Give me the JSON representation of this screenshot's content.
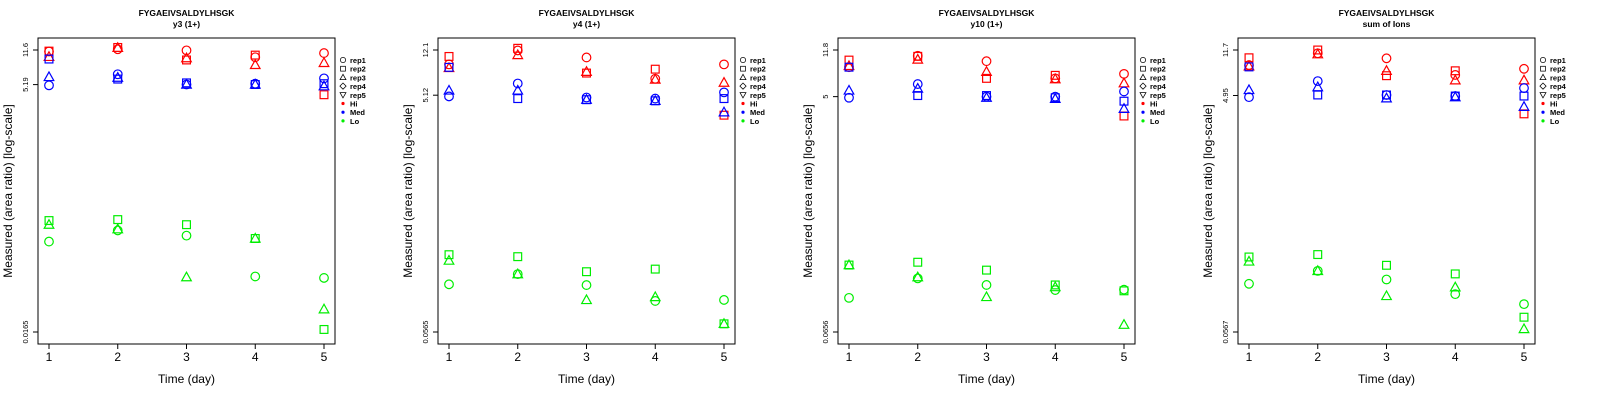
{
  "figure": {
    "x_label": "Time (day)",
    "y_label": "Measured (area ratio) [log-scale]"
  },
  "legend": {
    "shapes": [
      {
        "label": "rep1",
        "shape": "circle"
      },
      {
        "label": "rep2",
        "shape": "square"
      },
      {
        "label": "rep3",
        "shape": "triangle-up"
      },
      {
        "label": "rep4",
        "shape": "diamond"
      },
      {
        "label": "rep5",
        "shape": "triangle-down"
      }
    ],
    "groups": [
      {
        "label": "Hi",
        "color": "#ff0000"
      },
      {
        "label": "Med",
        "color": "#0000ff"
      },
      {
        "label": "Lo",
        "color": "#00ee00"
      }
    ]
  },
  "chart_data": [
    {
      "type": "scatter",
      "title": "FYGAEIVSALDYLHSGK",
      "subtitle": "y3 (1+)",
      "y_scale": "log",
      "x": [
        1,
        2,
        3,
        4,
        5
      ],
      "ylim": [
        0.0165,
        11.6
      ],
      "y_ticks": [
        "0.0165",
        "5.19",
        "11.6"
      ],
      "series": [
        {
          "group": "Hi",
          "rep": "rep1",
          "values": [
            11.2,
            11.8,
            11.5,
            9.8,
            10.8
          ]
        },
        {
          "group": "Hi",
          "rep": "rep2",
          "values": [
            11.3,
            12.3,
            9.2,
            10.3,
            4.1
          ]
        },
        {
          "group": "Hi",
          "rep": "rep3",
          "values": [
            9.9,
            12.2,
            9.6,
            8.2,
            8.6
          ]
        },
        {
          "group": "Med",
          "rep": "rep1",
          "values": [
            5.1,
            6.6,
            5.2,
            5.3,
            6.0
          ]
        },
        {
          "group": "Med",
          "rep": "rep2",
          "values": [
            9.4,
            5.9,
            5.4,
            5.2,
            5.3
          ]
        },
        {
          "group": "Med",
          "rep": "rep3",
          "values": [
            6.2,
            6.1,
            5.2,
            5.2,
            5.0
          ]
        },
        {
          "group": "Lo",
          "rep": "rep1",
          "values": [
            0.135,
            0.175,
            0.155,
            0.06,
            0.058
          ]
        },
        {
          "group": "Lo",
          "rep": "rep2",
          "values": [
            0.22,
            0.225,
            0.2,
            0.145,
            0.0175
          ]
        },
        {
          "group": "Lo",
          "rep": "rep3",
          "values": [
            0.2,
            0.18,
            0.059,
            0.145,
            0.028
          ]
        }
      ]
    },
    {
      "type": "scatter",
      "title": "FYGAEIVSALDYLHSGK",
      "subtitle": "y4 (1+)",
      "y_scale": "log",
      "x": [
        1,
        2,
        3,
        4,
        5
      ],
      "ylim": [
        0.0565,
        12.1
      ],
      "y_ticks": [
        "0.0565",
        "5.12",
        "12.1"
      ],
      "series": [
        {
          "group": "Hi",
          "rep": "rep1",
          "values": [
            9.2,
            12.0,
            10.5,
            7.0,
            9.2
          ]
        },
        {
          "group": "Hi",
          "rep": "rep2",
          "values": [
            10.7,
            12.5,
            7.8,
            8.4,
            3.5
          ]
        },
        {
          "group": "Hi",
          "rep": "rep3",
          "values": [
            8.6,
            11.0,
            8.0,
            6.9,
            6.5
          ]
        },
        {
          "group": "Med",
          "rep": "rep1",
          "values": [
            5.0,
            6.4,
            4.9,
            4.8,
            5.4
          ]
        },
        {
          "group": "Med",
          "rep": "rep2",
          "values": [
            8.7,
            4.8,
            4.7,
            4.6,
            4.8
          ]
        },
        {
          "group": "Med",
          "rep": "rep3",
          "values": [
            5.6,
            5.6,
            4.7,
            4.6,
            3.7
          ]
        },
        {
          "group": "Lo",
          "rep": "rep1",
          "values": [
            0.14,
            0.17,
            0.138,
            0.102,
            0.104
          ]
        },
        {
          "group": "Lo",
          "rep": "rep2",
          "values": [
            0.246,
            0.237,
            0.178,
            0.187,
            0.066
          ]
        },
        {
          "group": "Lo",
          "rep": "rep3",
          "values": [
            0.22,
            0.17,
            0.104,
            0.11,
            0.066
          ]
        }
      ]
    },
    {
      "type": "scatter",
      "title": "FYGAEIVSALDYLHSGK",
      "subtitle": "y10 (1+)",
      "y_scale": "log",
      "x": [
        1,
        2,
        3,
        4,
        5
      ],
      "ylim": [
        0.0656,
        11.8
      ],
      "y_ticks": [
        "0.0656",
        "5",
        "11.8"
      ],
      "series": [
        {
          "group": "Hi",
          "rep": "rep1",
          "values": [
            8.6,
            10.6,
            9.6,
            7.0,
            7.6
          ]
        },
        {
          "group": "Hi",
          "rep": "rep2",
          "values": [
            9.8,
            10.5,
            7.0,
            7.4,
            3.5
          ]
        },
        {
          "group": "Hi",
          "rep": "rep3",
          "values": [
            8.8,
            9.9,
            7.9,
            6.9,
            6.4
          ]
        },
        {
          "group": "Med",
          "rep": "rep1",
          "values": [
            4.9,
            6.3,
            5.0,
            5.0,
            5.5
          ]
        },
        {
          "group": "Med",
          "rep": "rep2",
          "values": [
            8.6,
            5.1,
            5.1,
            4.9,
            4.6
          ]
        },
        {
          "group": "Med",
          "rep": "rep3",
          "values": [
            5.6,
            5.8,
            4.9,
            4.8,
            4.0
          ]
        },
        {
          "group": "Lo",
          "rep": "rep1",
          "values": [
            0.123,
            0.176,
            0.156,
            0.142,
            0.143
          ]
        },
        {
          "group": "Lo",
          "rep": "rep2",
          "values": [
            0.225,
            0.237,
            0.205,
            0.156,
            0.14
          ]
        },
        {
          "group": "Lo",
          "rep": "rep3",
          "values": [
            0.225,
            0.18,
            0.125,
            0.15,
            0.075
          ]
        }
      ]
    },
    {
      "type": "scatter",
      "title": "FYGAEIVSALDYLHSGK",
      "subtitle": "sum of Ions",
      "y_scale": "log",
      "x": [
        1,
        2,
        3,
        4,
        5
      ],
      "ylim": [
        0.0567,
        11.7
      ],
      "y_ticks": [
        "0.0567",
        "4.95",
        "11.7"
      ],
      "series": [
        {
          "group": "Hi",
          "rep": "rep1",
          "values": [
            8.8,
            11.0,
            10.0,
            7.3,
            8.2
          ]
        },
        {
          "group": "Hi",
          "rep": "rep2",
          "values": [
            10.1,
            11.7,
            7.2,
            7.9,
            3.5
          ]
        },
        {
          "group": "Hi",
          "rep": "rep3",
          "values": [
            8.6,
            10.8,
            7.9,
            6.6,
            6.6
          ]
        },
        {
          "group": "Med",
          "rep": "rep1",
          "values": [
            4.8,
            6.5,
            5.0,
            4.9,
            5.7
          ]
        },
        {
          "group": "Med",
          "rep": "rep2",
          "values": [
            8.5,
            5.0,
            5.0,
            4.9,
            4.9
          ]
        },
        {
          "group": "Med",
          "rep": "rep3",
          "values": [
            5.5,
            5.8,
            4.7,
            4.8,
            4.0
          ]
        },
        {
          "group": "Lo",
          "rep": "rep1",
          "values": [
            0.141,
            0.18,
            0.153,
            0.116,
            0.096
          ]
        },
        {
          "group": "Lo",
          "rep": "rep2",
          "values": [
            0.234,
            0.245,
            0.2,
            0.17,
            0.075
          ]
        },
        {
          "group": "Lo",
          "rep": "rep3",
          "values": [
            0.215,
            0.18,
            0.112,
            0.132,
            0.06
          ]
        }
      ]
    }
  ]
}
